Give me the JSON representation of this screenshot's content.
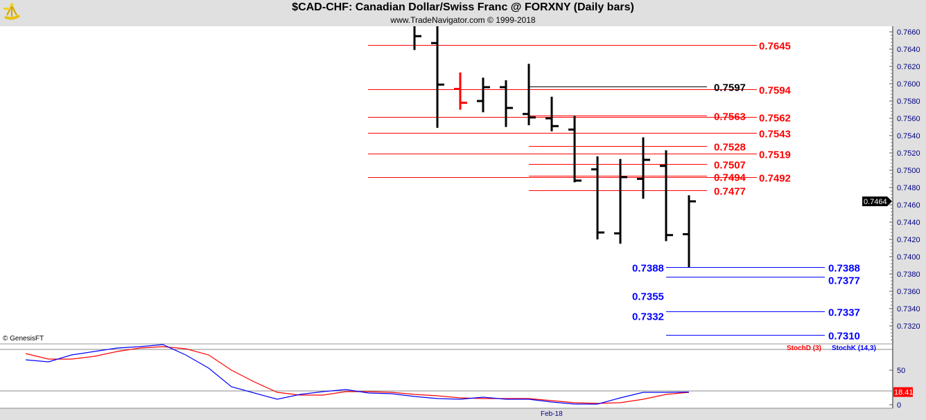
{
  "header": {
    "title": "$CAD-CHF:  Canadian Dollar/Swiss Franc @ FORXNY  (Daily bars)",
    "subtitle": "www.TradeNavigator.com © 1999-2018",
    "logo": "sextant-logo"
  },
  "copyright": "© GenesisFT",
  "colors": {
    "up_bar": "#000000",
    "down_bar": "#000000",
    "highlight_bar": "#ff0000",
    "red_level": "#ff0000",
    "blue_level": "#0000ff",
    "stoch_d": "#ff0000",
    "stoch_k": "#0000ff",
    "background": "#ffffff",
    "axis_bg": "#e0e0e0"
  },
  "chart_data": [
    {
      "type": "ohlc",
      "title": "$CAD-CHF:  Canadian Dollar/Swiss Franc @ FORXNY  (Daily bars)",
      "ylim": [
        0.7305,
        0.7672
      ],
      "y_ticks": [
        "0.7660",
        "0.7640",
        "0.7620",
        "0.7600",
        "0.7580",
        "0.7560",
        "0.7540",
        "0.7520",
        "0.7500",
        "0.7480",
        "0.7460",
        "0.7440",
        "0.7420",
        "0.7400",
        "0.7380",
        "0.7360",
        "0.7340",
        "0.7320"
      ],
      "last_price": "0.7464",
      "first_bar_index": 17,
      "bars": [
        {
          "o": null,
          "h": 0.7672,
          "l": 0.7639,
          "c": 0.7655
        },
        {
          "o": 0.7647,
          "h": 0.7672,
          "l": 0.7549,
          "c": 0.7599
        },
        {
          "o": 0.7594,
          "h": 0.7613,
          "l": 0.757,
          "c": 0.7578,
          "highlight": true
        },
        {
          "o": 0.758,
          "h": 0.7607,
          "l": 0.7567,
          "c": 0.7596
        },
        {
          "o": 0.7596,
          "h": 0.7604,
          "l": 0.755,
          "c": 0.7572
        },
        {
          "o": 0.7565,
          "h": 0.7623,
          "l": 0.7552,
          "c": 0.7561
        },
        {
          "o": 0.756,
          "h": 0.7585,
          "l": 0.7545,
          "c": 0.7551
        },
        {
          "o": 0.7547,
          "h": 0.7563,
          "l": 0.7486,
          "c": 0.7488
        },
        {
          "o": 0.7501,
          "h": 0.7516,
          "l": 0.742,
          "c": 0.7428
        },
        {
          "o": 0.7427,
          "h": 0.7513,
          "l": 0.7415,
          "c": 0.7492
        },
        {
          "o": 0.749,
          "h": 0.7538,
          "l": 0.7467,
          "c": 0.7512
        },
        {
          "o": 0.7505,
          "h": 0.7523,
          "l": 0.7418,
          "c": 0.7425
        },
        {
          "o": 0.7426,
          "h": 0.7471,
          "l": 0.7388,
          "c": 0.7464
        }
      ],
      "levels": [
        {
          "group": "long",
          "color": "#ff0000",
          "start_bar": 15,
          "label_side": "right",
          "items": [
            "0.7645",
            "0.7594",
            "0.7562",
            "0.7543",
            "0.7519",
            "0.7492"
          ]
        },
        {
          "group": "short",
          "color": "#ff0000",
          "start_bar": 22,
          "label_side": "right",
          "items": [
            "0.7563",
            "0.7528",
            "0.7507",
            "0.7494",
            "0.7477"
          ]
        },
        {
          "group": "short",
          "color": "#000000",
          "start_bar": 22,
          "label_side": "right",
          "items": [
            "0.7597"
          ]
        },
        {
          "group": "blue",
          "color": "#0000ff",
          "start_bar": 28,
          "label_side": "right",
          "items": [
            "0.7388",
            "0.7377",
            "0.7337",
            "0.7310"
          ]
        },
        {
          "group": "blue",
          "color": "#0000ff",
          "start_bar": 28,
          "label_side": "left",
          "items": [
            "0.7388",
            "0.7355",
            "0.7332"
          ]
        }
      ]
    },
    {
      "type": "line",
      "ylim": [
        0,
        100
      ],
      "y_ticks": [
        "50",
        "0"
      ],
      "reference_lines": [
        80,
        20
      ],
      "x_labels": [
        {
          "index": 23,
          "label": "Feb-18"
        }
      ],
      "last_value": "18.41",
      "series": [
        {
          "name": "StochD (3)",
          "color": "#ff0000",
          "values": [
            74,
            66,
            66,
            70,
            77,
            82,
            84,
            81,
            72,
            50,
            33,
            18,
            14,
            14,
            19,
            19,
            18,
            15,
            13,
            10,
            9,
            9,
            9,
            6,
            3,
            2,
            3,
            8,
            15,
            18
          ]
        },
        {
          "name": "StochK (14,3)",
          "color": "#0000ff",
          "values": [
            65,
            62,
            72,
            77,
            82,
            84,
            87,
            72,
            53,
            26,
            17,
            8,
            15,
            19,
            22,
            17,
            16,
            12,
            9,
            8,
            11,
            8,
            8,
            4,
            1,
            1,
            10,
            18,
            18,
            18.41
          ]
        }
      ]
    }
  ]
}
